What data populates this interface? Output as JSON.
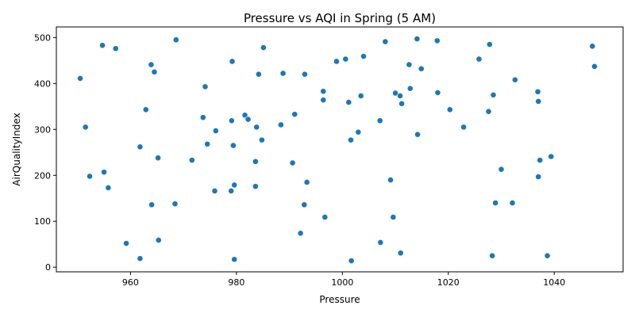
{
  "chart_data": {
    "type": "scatter",
    "title": "Pressure vs AQI in Spring (5 AM)",
    "xlabel": "Pressure",
    "ylabel": "AirQualityIndex",
    "xlim": [
      946,
      1053
    ],
    "ylim": [
      -10,
      523
    ],
    "xticks": [
      960,
      980,
      1000,
      1020,
      1040
    ],
    "yticks": [
      0,
      100,
      200,
      300,
      400,
      500
    ],
    "grid": false,
    "color": "#1f77b4",
    "points": [
      {
        "x": 950.5,
        "y": 411
      },
      {
        "x": 951.5,
        "y": 305
      },
      {
        "x": 952.3,
        "y": 198
      },
      {
        "x": 954.7,
        "y": 483
      },
      {
        "x": 955.0,
        "y": 207
      },
      {
        "x": 955.8,
        "y": 173
      },
      {
        "x": 957.2,
        "y": 476
      },
      {
        "x": 959.2,
        "y": 52
      },
      {
        "x": 961.8,
        "y": 19
      },
      {
        "x": 961.8,
        "y": 262
      },
      {
        "x": 962.9,
        "y": 343
      },
      {
        "x": 963.9,
        "y": 441
      },
      {
        "x": 964.0,
        "y": 136
      },
      {
        "x": 964.5,
        "y": 425
      },
      {
        "x": 965.2,
        "y": 238
      },
      {
        "x": 965.3,
        "y": 59
      },
      {
        "x": 968.4,
        "y": 138
      },
      {
        "x": 968.6,
        "y": 495
      },
      {
        "x": 971.6,
        "y": 233
      },
      {
        "x": 973.7,
        "y": 326
      },
      {
        "x": 974.1,
        "y": 393
      },
      {
        "x": 974.5,
        "y": 268
      },
      {
        "x": 975.9,
        "y": 166
      },
      {
        "x": 976.1,
        "y": 297
      },
      {
        "x": 979.0,
        "y": 166
      },
      {
        "x": 979.1,
        "y": 319
      },
      {
        "x": 979.2,
        "y": 448
      },
      {
        "x": 979.4,
        "y": 265
      },
      {
        "x": 979.6,
        "y": 179
      },
      {
        "x": 979.6,
        "y": 17
      },
      {
        "x": 981.6,
        "y": 331
      },
      {
        "x": 982.2,
        "y": 322
      },
      {
        "x": 983.6,
        "y": 230
      },
      {
        "x": 983.6,
        "y": 176
      },
      {
        "x": 983.8,
        "y": 305
      },
      {
        "x": 984.2,
        "y": 420
      },
      {
        "x": 984.8,
        "y": 277
      },
      {
        "x": 985.1,
        "y": 478
      },
      {
        "x": 988.4,
        "y": 310
      },
      {
        "x": 988.8,
        "y": 422
      },
      {
        "x": 990.6,
        "y": 227
      },
      {
        "x": 991.0,
        "y": 333
      },
      {
        "x": 992.1,
        "y": 74
      },
      {
        "x": 992.8,
        "y": 136
      },
      {
        "x": 992.9,
        "y": 420
      },
      {
        "x": 993.3,
        "y": 185
      },
      {
        "x": 996.4,
        "y": 383
      },
      {
        "x": 996.4,
        "y": 364
      },
      {
        "x": 996.7,
        "y": 109
      },
      {
        "x": 998.9,
        "y": 448
      },
      {
        "x": 1000.6,
        "y": 453
      },
      {
        "x": 1001.2,
        "y": 359
      },
      {
        "x": 1001.6,
        "y": 277
      },
      {
        "x": 1001.7,
        "y": 14
      },
      {
        "x": 1003.0,
        "y": 294
      },
      {
        "x": 1003.5,
        "y": 373
      },
      {
        "x": 1004.0,
        "y": 459
      },
      {
        "x": 1007.1,
        "y": 319
      },
      {
        "x": 1007.2,
        "y": 54
      },
      {
        "x": 1008.1,
        "y": 491
      },
      {
        "x": 1009.1,
        "y": 190
      },
      {
        "x": 1009.6,
        "y": 109
      },
      {
        "x": 1010.0,
        "y": 379
      },
      {
        "x": 1010.9,
        "y": 373
      },
      {
        "x": 1011.0,
        "y": 31
      },
      {
        "x": 1011.2,
        "y": 356
      },
      {
        "x": 1012.6,
        "y": 441
      },
      {
        "x": 1012.8,
        "y": 389
      },
      {
        "x": 1014.1,
        "y": 497
      },
      {
        "x": 1014.2,
        "y": 289
      },
      {
        "x": 1014.9,
        "y": 432
      },
      {
        "x": 1017.9,
        "y": 493
      },
      {
        "x": 1018.0,
        "y": 380
      },
      {
        "x": 1020.3,
        "y": 343
      },
      {
        "x": 1022.9,
        "y": 305
      },
      {
        "x": 1025.8,
        "y": 453
      },
      {
        "x": 1027.6,
        "y": 339
      },
      {
        "x": 1027.8,
        "y": 485
      },
      {
        "x": 1028.3,
        "y": 25
      },
      {
        "x": 1028.5,
        "y": 375
      },
      {
        "x": 1028.9,
        "y": 140
      },
      {
        "x": 1030.0,
        "y": 213
      },
      {
        "x": 1032.1,
        "y": 140
      },
      {
        "x": 1032.6,
        "y": 408
      },
      {
        "x": 1036.9,
        "y": 382
      },
      {
        "x": 1037.0,
        "y": 361
      },
      {
        "x": 1037.0,
        "y": 197
      },
      {
        "x": 1037.3,
        "y": 233
      },
      {
        "x": 1038.7,
        "y": 25
      },
      {
        "x": 1039.4,
        "y": 241
      },
      {
        "x": 1047.2,
        "y": 481
      },
      {
        "x": 1047.6,
        "y": 437
      }
    ]
  }
}
